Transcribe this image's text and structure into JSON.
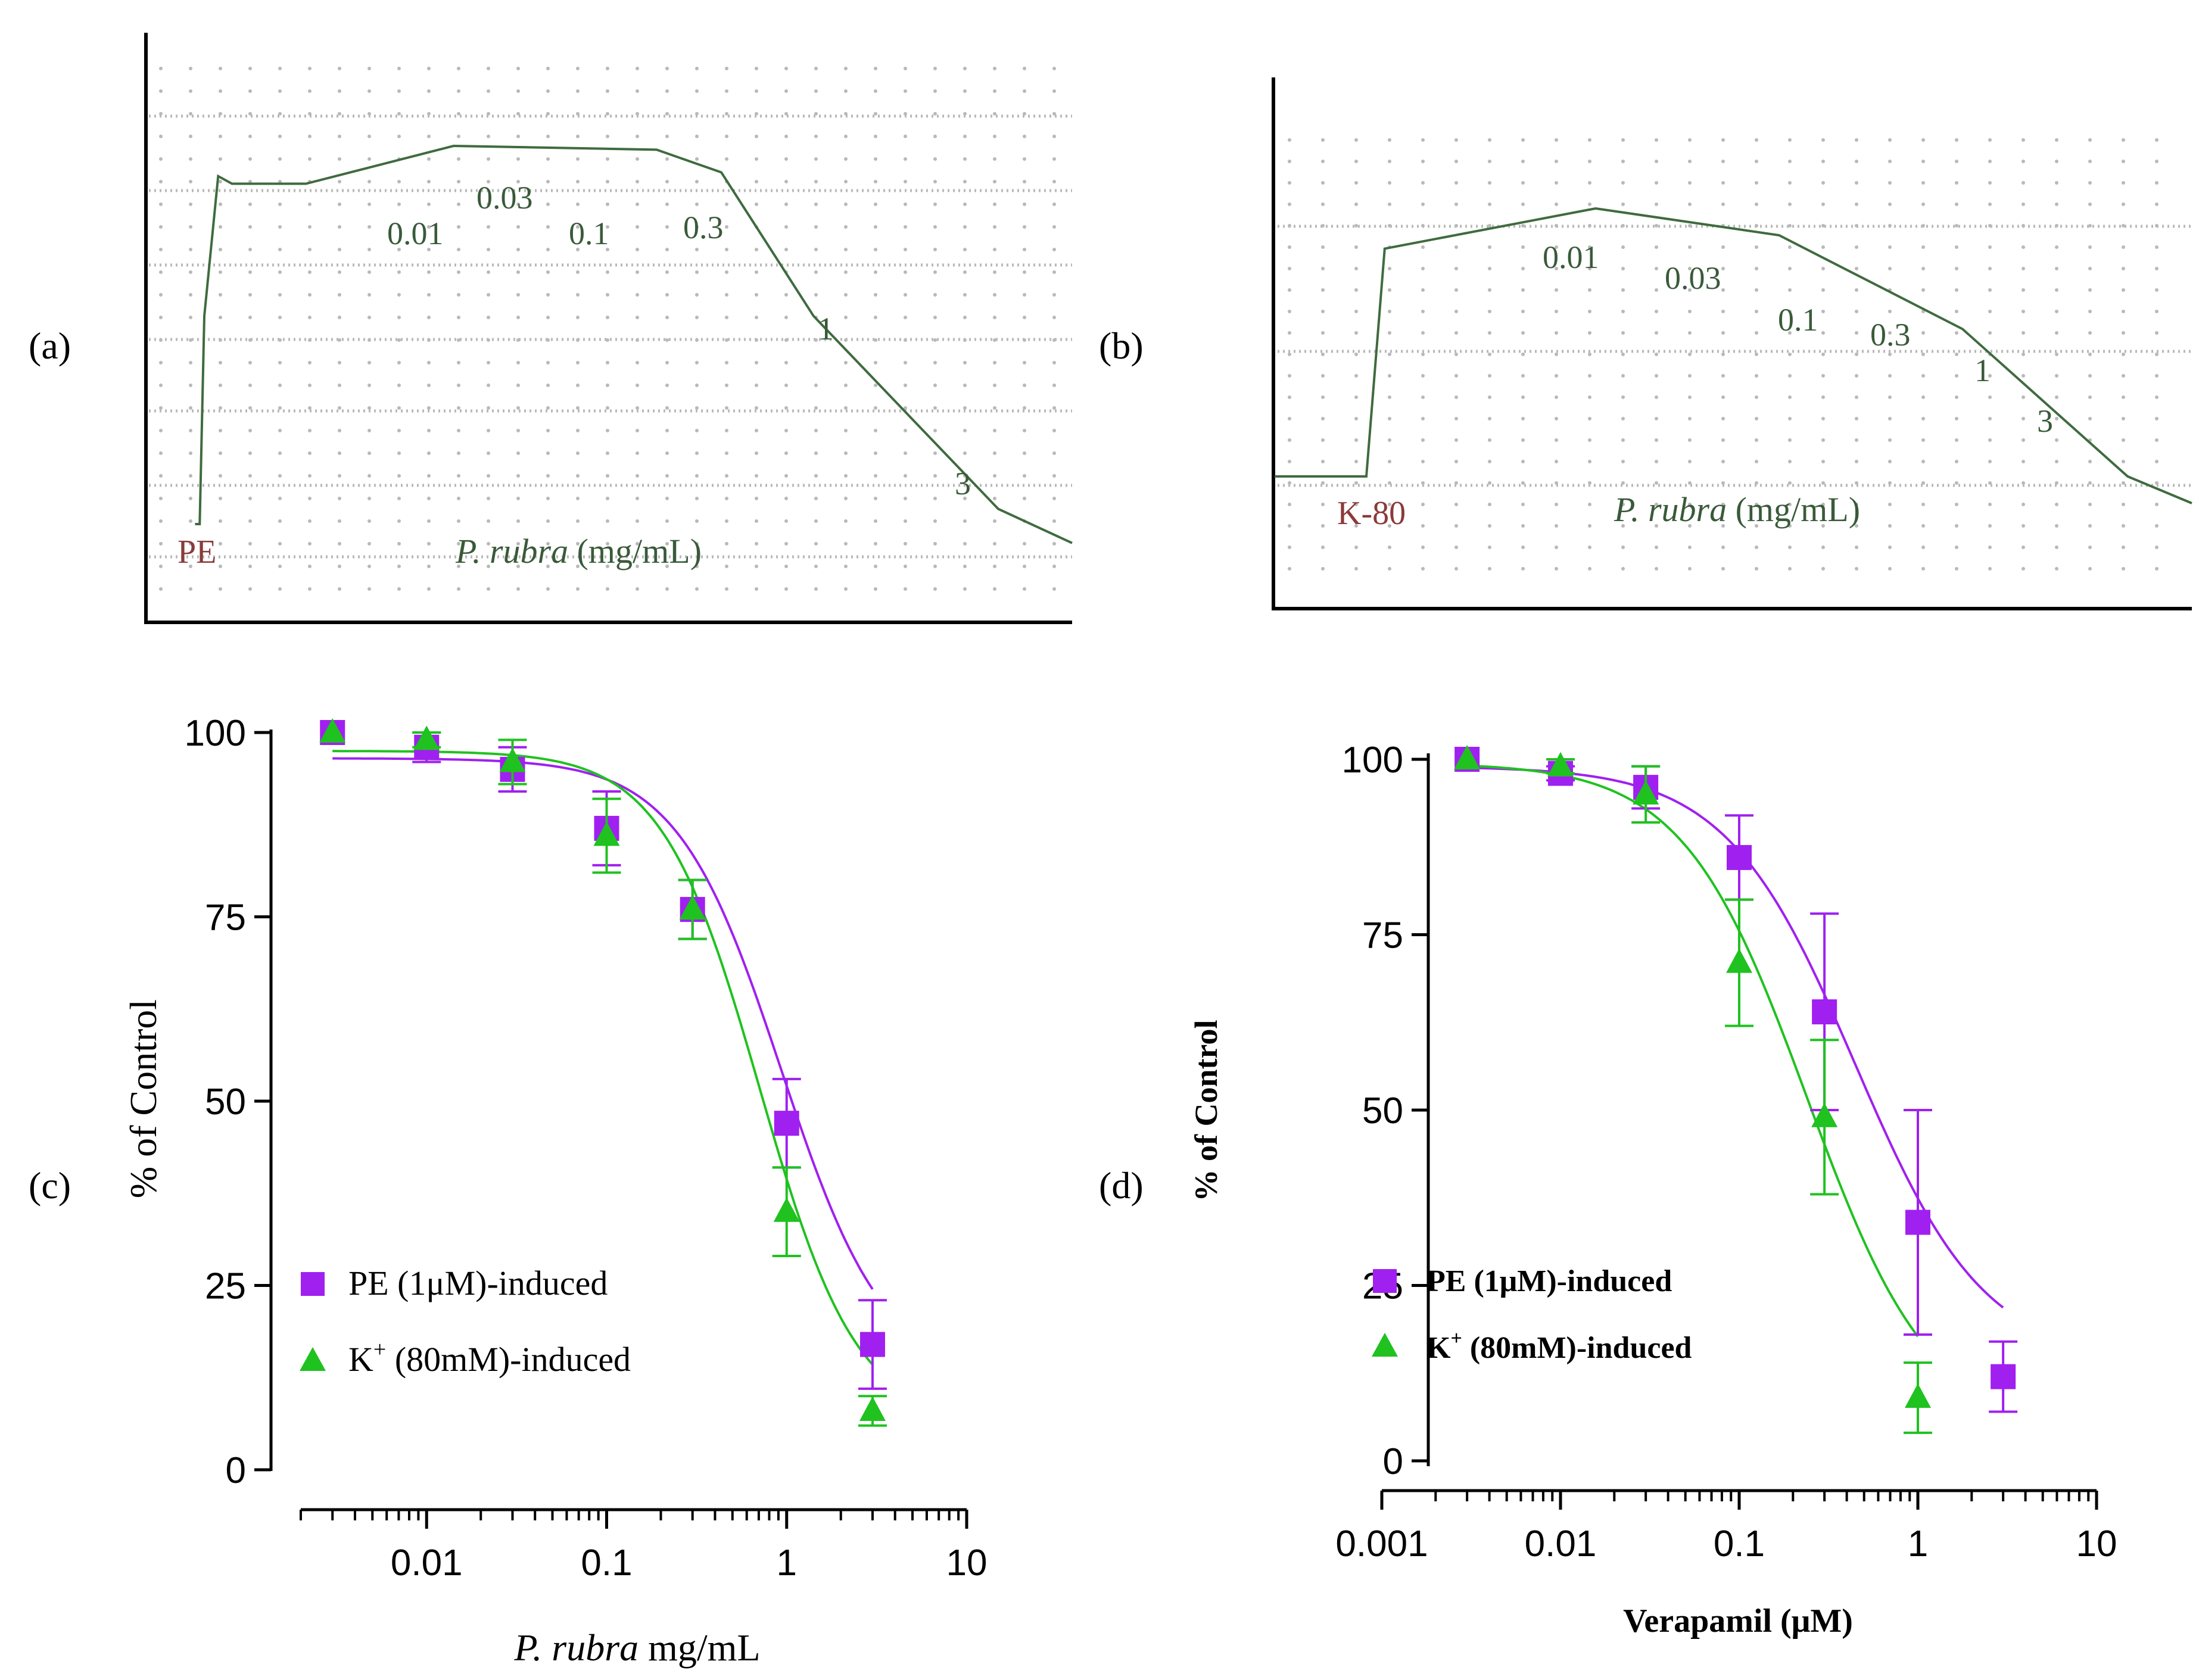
{
  "panel_labels": {
    "a": "(a)",
    "b": "(b)",
    "c": "(c)",
    "d": "(d)"
  },
  "colors": {
    "trace": "#3f6b3f",
    "trace_text": "#3a5a3a",
    "agonist_text": "#8b3a3a",
    "grid_dot": "#b9b9b9",
    "pe_series": "#a020f0",
    "k_series": "#1fc21f",
    "axis": "#000000"
  },
  "chart_data": [
    {
      "type": "trace",
      "panel": "a",
      "agonist_label": "PE",
      "xlabel_italic": "P. rubra",
      "xlabel_rest": " (mg/mL)",
      "concentration_labels": [
        "0.01",
        "0.03",
        "0.1",
        "0.3",
        "1",
        "3"
      ],
      "relative_tension": [
        {
          "t": 0.05,
          "v": 0.0
        },
        {
          "t": 0.055,
          "v": 0.0
        },
        {
          "t": 0.06,
          "v": 0.55
        },
        {
          "t": 0.075,
          "v": 0.92
        },
        {
          "t": 0.09,
          "v": 0.9
        },
        {
          "t": 0.17,
          "v": 0.9
        },
        {
          "t": 0.33,
          "v": 1.0
        },
        {
          "t": 0.55,
          "v": 0.99
        },
        {
          "t": 0.62,
          "v": 0.93
        },
        {
          "t": 0.72,
          "v": 0.55
        },
        {
          "t": 0.92,
          "v": 0.04
        },
        {
          "t": 1.0,
          "v": -0.05
        }
      ]
    },
    {
      "type": "trace",
      "panel": "b",
      "agonist_label": "K-80",
      "xlabel_italic": "P. rubra",
      "xlabel_rest": " (mg/mL)",
      "concentration_labels": [
        "0.01",
        "0.03",
        "0.1",
        "0.3",
        "1",
        "3"
      ],
      "relative_tension": [
        {
          "t": 0.0,
          "v": 0.0
        },
        {
          "t": 0.1,
          "v": 0.0
        },
        {
          "t": 0.12,
          "v": 0.85
        },
        {
          "t": 0.35,
          "v": 1.0
        },
        {
          "t": 0.55,
          "v": 0.9
        },
        {
          "t": 0.75,
          "v": 0.55
        },
        {
          "t": 0.93,
          "v": 0.0
        },
        {
          "t": 1.0,
          "v": -0.1
        }
      ]
    },
    {
      "type": "scatter",
      "panel": "c",
      "xscale": "log",
      "xlim": [
        0.002,
        10
      ],
      "ylim": [
        0,
        100
      ],
      "xticks": [
        0.01,
        0.1,
        1,
        10
      ],
      "xtick_labels": [
        "0.01",
        "0.1",
        "1",
        "10"
      ],
      "yticks": [
        0,
        25,
        50,
        75,
        100
      ],
      "ytick_labels": [
        "0",
        "25",
        "50",
        "75",
        "100"
      ],
      "ylabel": "% of Control",
      "xlabel_italic": "P. rubra",
      "xlabel_rest": " mg/mL",
      "legend_position": "bottom-left",
      "series": [
        {
          "name": "PE (1μM)-induced",
          "marker": "square",
          "x": [
            0.003,
            0.01,
            0.03,
            0.1,
            0.3,
            1,
            3
          ],
          "y": [
            100,
            98,
            95,
            87,
            76,
            47,
            17
          ],
          "err": [
            0,
            2,
            3,
            5,
            4,
            6,
            6
          ],
          "fit": {
            "top": 96.5,
            "bottom": 12,
            "log_ic50": -0.03,
            "hill": 1.5
          }
        },
        {
          "name": "K+ (80mM)-induced",
          "marker": "triangle",
          "x": [
            0.003,
            0.01,
            0.03,
            0.1,
            0.3,
            1,
            3
          ],
          "y": [
            100,
            99,
            96,
            86,
            76,
            35,
            8
          ],
          "err": [
            0,
            1,
            3,
            5,
            4,
            6,
            2
          ],
          "fit": {
            "top": 97.5,
            "bottom": 6,
            "log_ic50": -0.15,
            "hill": 1.6
          }
        }
      ]
    },
    {
      "type": "scatter",
      "panel": "d",
      "xscale": "log",
      "xlim": [
        0.001,
        10
      ],
      "ylim": [
        0,
        100
      ],
      "xticks": [
        0.001,
        0.01,
        0.1,
        1,
        10
      ],
      "xtick_labels": [
        "0.001",
        "0.01",
        "0.1",
        "1",
        "10"
      ],
      "yticks": [
        0,
        25,
        50,
        75,
        100
      ],
      "ytick_labels": [
        "0",
        "25",
        "50",
        "75",
        "100"
      ],
      "ylabel": "% of Control",
      "xlabel": "Verapamil (μM)",
      "legend_position": "bottom-left",
      "series": [
        {
          "name": "PE (1μM)-induced",
          "marker": "square",
          "x": [
            0.003,
            0.01,
            0.03,
            0.1,
            0.3,
            1,
            3
          ],
          "y": [
            100,
            98,
            96,
            86,
            64,
            34,
            12
          ],
          "err": [
            0,
            1,
            3,
            6,
            14,
            16,
            5
          ],
          "fit": {
            "top": 99,
            "bottom": 14,
            "log_ic50": -0.35,
            "hill": 1.2
          }
        },
        {
          "name": "K+ (80mM)-induced",
          "marker": "triangle",
          "x": [
            0.003,
            0.01,
            0.03,
            0.1,
            0.3,
            1
          ],
          "y": [
            100,
            99,
            95,
            71,
            49,
            9
          ],
          "err": [
            0,
            1,
            4,
            9,
            11,
            5
          ],
          "fit": {
            "top": 99.5,
            "bottom": 4,
            "log_ic50": -0.62,
            "hill": 1.25
          }
        }
      ]
    }
  ]
}
